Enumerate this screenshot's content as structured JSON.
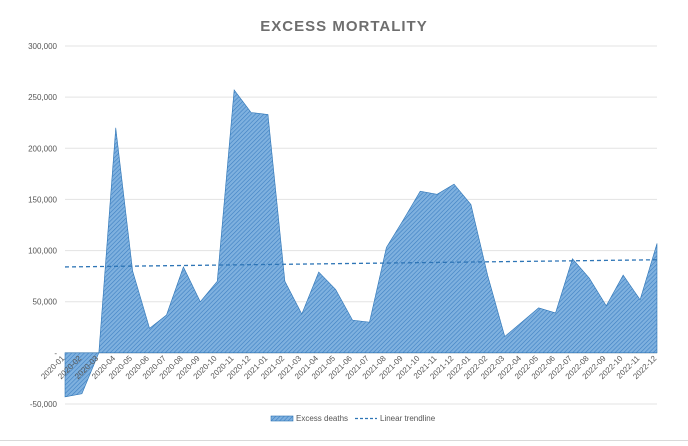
{
  "chart_data": {
    "type": "area",
    "title": "EXCESS MORTALITY",
    "xlabel": "",
    "ylabel": "",
    "ylim": [
      -50000,
      300000
    ],
    "yticks": [
      -50000,
      0,
      50000,
      100000,
      150000,
      200000,
      250000,
      300000
    ],
    "ytick_labels": [
      "-50,000",
      "-",
      "50,000",
      "100,000",
      "150,000",
      "200,000",
      "250,000",
      "300,000"
    ],
    "grid": true,
    "legend_position": "bottom",
    "categories": [
      "2020-01",
      "2020-02",
      "2020-03",
      "2020-04",
      "2020-05",
      "2020-06",
      "2020-07",
      "2020-08",
      "2020-09",
      "2020-10",
      "2020-11",
      "2020-12",
      "2021-01",
      "2021-02",
      "2021-03",
      "2021-04",
      "2021-05",
      "2021-06",
      "2021-07",
      "2021-08",
      "2021-09",
      "2021-10",
      "2021-11",
      "2021-12",
      "2022-01",
      "2022-02",
      "2022-03",
      "2022-04",
      "2022-05",
      "2022-06",
      "2022-07",
      "2022-08",
      "2022-09",
      "2022-10",
      "2022-11",
      "2022-12"
    ],
    "series": [
      {
        "name": "Excess deaths",
        "kind": "area",
        "color": "#5b9bd5",
        "values": [
          -43000,
          -40000,
          0,
          220000,
          80000,
          24000,
          37000,
          84000,
          50000,
          70000,
          257000,
          235000,
          233000,
          70000,
          38000,
          79000,
          62000,
          32000,
          30000,
          103000,
          130000,
          158000,
          155000,
          165000,
          145000,
          75000,
          16000,
          30000,
          44000,
          39000,
          92000,
          73000,
          46000,
          76000,
          52000,
          107000
        ]
      },
      {
        "name": "Linear trendline",
        "kind": "line",
        "style": "dashed",
        "color": "#2e75b6",
        "values": [
          84000,
          84200,
          84400,
          84600,
          84800,
          85000,
          85200,
          85400,
          85600,
          85800,
          86000,
          86200,
          86400,
          86600,
          86800,
          87000,
          87200,
          87400,
          87600,
          87800,
          88000,
          88200,
          88400,
          88600,
          88800,
          89000,
          89200,
          89400,
          89600,
          89800,
          90000,
          90200,
          90400,
          90600,
          90800,
          91000
        ]
      }
    ]
  }
}
